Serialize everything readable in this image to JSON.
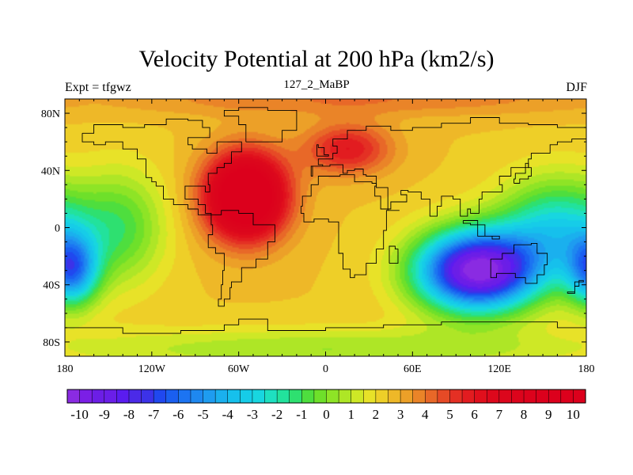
{
  "chart_data": {
    "type": "heatmap",
    "title": "Velocity Potential at 200 hPa (km2/s)",
    "left_label": "Expt = tfgwz",
    "center_label": "127_2_MaBP",
    "right_label": "DJF",
    "x_range": [
      -180,
      180
    ],
    "y_range": [
      -90,
      90
    ],
    "x_ticks": [
      {
        "value": -180,
        "label": "180"
      },
      {
        "value": -120,
        "label": "120W"
      },
      {
        "value": -60,
        "label": "60W"
      },
      {
        "value": 0,
        "label": "0"
      },
      {
        "value": 60,
        "label": "60E"
      },
      {
        "value": 120,
        "label": "120E"
      },
      {
        "value": 180,
        "label": "180"
      }
    ],
    "y_ticks": [
      {
        "value": 80,
        "label": "80N"
      },
      {
        "value": 40,
        "label": "40N"
      },
      {
        "value": 0,
        "label": "0"
      },
      {
        "value": -40,
        "label": "40S"
      },
      {
        "value": -80,
        "label": "80S"
      }
    ],
    "colorbar": {
      "min": -10.5,
      "max": 10.5,
      "step": 0.5,
      "labels": [
        "-10",
        "-9",
        "-8",
        "-7",
        "-6",
        "-5",
        "-4",
        "-3",
        "-2",
        "-1",
        "0",
        "1",
        "2",
        "3",
        "4",
        "5",
        "6",
        "7",
        "8",
        "9",
        "10"
      ],
      "colors": [
        "#8a2be2",
        "#7b1fe6",
        "#6c1ee6",
        "#6a1ee8",
        "#5a1cf0",
        "#4b2ae8",
        "#3c32e8",
        "#2048ef",
        "#1a5ff0",
        "#1c74f2",
        "#1e88f0",
        "#1e9cf0",
        "#1ab0ee",
        "#16c0ec",
        "#16cce8",
        "#18d6e0",
        "#1ee0c0",
        "#22e29c",
        "#2ee070",
        "#4ede3e",
        "#6ee02a",
        "#8ee426",
        "#aee626",
        "#cee826",
        "#e8e228",
        "#eecf28",
        "#eeb828",
        "#eca028",
        "#ea8428",
        "#e86828",
        "#e64a26",
        "#e43024",
        "#e21c20",
        "#e00f1c",
        "#dd081c",
        "#dc061c",
        "#dc041c",
        "#dc021c",
        "#dc001c",
        "#dc001c",
        "#dc001c",
        "#dc001c"
      ]
    },
    "field_blobs": [
      {
        "name": "background",
        "value": 2.5
      },
      {
        "name": "north-pole-band",
        "lon": 20,
        "lat": 90,
        "sx": 180,
        "sy": 12,
        "amp": 1.5
      },
      {
        "name": "na-atlantic-high",
        "lon": -55,
        "lat": 22,
        "sx": 28,
        "sy": 30,
        "amp": 9
      },
      {
        "name": "eurasia-plume",
        "lon": 15,
        "lat": 55,
        "sx": 30,
        "sy": 18,
        "amp": 3.5
      },
      {
        "name": "indian-ocean-low",
        "lon": 105,
        "lat": -30,
        "sx": 42,
        "sy": 28,
        "amp": -13
      },
      {
        "name": "west-pacific-low",
        "lon": 160,
        "lat": 0,
        "sx": 40,
        "sy": 35,
        "amp": -5
      },
      {
        "name": "east-pacific-low",
        "lon": -175,
        "lat": -30,
        "sx": 18,
        "sy": 25,
        "amp": -7
      },
      {
        "name": "mid-pacific-trough",
        "lon": -140,
        "lat": 0,
        "sx": 30,
        "sy": 40,
        "amp": -3
      },
      {
        "name": "south-ocean-band",
        "lon": 0,
        "lat": -85,
        "sx": 200,
        "sy": 15,
        "amp": -2
      }
    ],
    "coastlines": [
      {
        "name": "north-america",
        "points": [
          [
            -168,
            66
          ],
          [
            -160,
            72
          ],
          [
            -140,
            70
          ],
          [
            -125,
            72
          ],
          [
            -110,
            76
          ],
          [
            -95,
            75
          ],
          [
            -85,
            70
          ],
          [
            -80,
            63
          ],
          [
            -95,
            58
          ],
          [
            -92,
            55
          ],
          [
            -82,
            52
          ],
          [
            -75,
            60
          ],
          [
            -65,
            60
          ],
          [
            -58,
            53
          ],
          [
            -65,
            45
          ],
          [
            -70,
            42
          ],
          [
            -75,
            38
          ],
          [
            -81,
            30
          ],
          [
            -80,
            25
          ],
          [
            -83,
            29
          ],
          [
            -90,
            29
          ],
          [
            -97,
            26
          ],
          [
            -97,
            20
          ],
          [
            -88,
            16
          ],
          [
            -83,
            10
          ],
          [
            -79,
            9
          ],
          [
            -88,
            13
          ],
          [
            -95,
            16
          ],
          [
            -105,
            20
          ],
          [
            -112,
            29
          ],
          [
            -117,
            32
          ],
          [
            -120,
            35
          ],
          [
            -124,
            40
          ],
          [
            -124,
            48
          ],
          [
            -130,
            55
          ],
          [
            -140,
            60
          ],
          [
            -152,
            58
          ],
          [
            -160,
            60
          ],
          [
            -168,
            66
          ]
        ]
      },
      {
        "name": "greenland",
        "points": [
          [
            -55,
            60
          ],
          [
            -45,
            60
          ],
          [
            -30,
            68
          ],
          [
            -20,
            75
          ],
          [
            -20,
            82
          ],
          [
            -40,
            84
          ],
          [
            -60,
            82
          ],
          [
            -70,
            78
          ],
          [
            -60,
            72
          ],
          [
            -55,
            60
          ]
        ]
      },
      {
        "name": "south-america",
        "points": [
          [
            -79,
            9
          ],
          [
            -72,
            12
          ],
          [
            -60,
            10
          ],
          [
            -50,
            2
          ],
          [
            -35,
            -5
          ],
          [
            -35,
            -10
          ],
          [
            -40,
            -22
          ],
          [
            -48,
            -28
          ],
          [
            -58,
            -38
          ],
          [
            -65,
            -42
          ],
          [
            -66,
            -50
          ],
          [
            -70,
            -55
          ],
          [
            -74,
            -50
          ],
          [
            -72,
            -40
          ],
          [
            -71,
            -30
          ],
          [
            -70,
            -18
          ],
          [
            -76,
            -14
          ],
          [
            -81,
            -5
          ],
          [
            -78,
            2
          ],
          [
            -79,
            9
          ]
        ]
      },
      {
        "name": "africa",
        "points": [
          [
            -17,
            15
          ],
          [
            -16,
            22
          ],
          [
            -10,
            30
          ],
          [
            -5,
            36
          ],
          [
            10,
            37
          ],
          [
            20,
            32
          ],
          [
            32,
            31
          ],
          [
            35,
            28
          ],
          [
            43,
            12
          ],
          [
            51,
            12
          ],
          [
            42,
            -2
          ],
          [
            40,
            -15
          ],
          [
            35,
            -25
          ],
          [
            28,
            -33
          ],
          [
            20,
            -35
          ],
          [
            17,
            -29
          ],
          [
            12,
            -18
          ],
          [
            9,
            -5
          ],
          [
            9,
            4
          ],
          [
            2,
            6
          ],
          [
            -8,
            4
          ],
          [
            -15,
            10
          ],
          [
            -17,
            15
          ]
        ]
      },
      {
        "name": "europe-asia",
        "points": [
          [
            -10,
            36
          ],
          [
            -9,
            43
          ],
          [
            -2,
            44
          ],
          [
            -5,
            48
          ],
          [
            5,
            52
          ],
          [
            8,
            57
          ],
          [
            5,
            62
          ],
          [
            15,
            68
          ],
          [
            28,
            71
          ],
          [
            45,
            68
          ],
          [
            60,
            70
          ],
          [
            80,
            73
          ],
          [
            100,
            77
          ],
          [
            120,
            73
          ],
          [
            140,
            72
          ],
          [
            160,
            70
          ],
          [
            180,
            68
          ],
          [
            180,
            62
          ],
          [
            170,
            60
          ],
          [
            160,
            58
          ],
          [
            155,
            52
          ],
          [
            142,
            48
          ],
          [
            140,
            42
          ],
          [
            128,
            36
          ],
          [
            120,
            30
          ],
          [
            122,
            25
          ],
          [
            108,
            20
          ],
          [
            106,
            10
          ],
          [
            100,
            13
          ],
          [
            98,
            8
          ],
          [
            93,
            20
          ],
          [
            88,
            22
          ],
          [
            80,
            15
          ],
          [
            77,
            8
          ],
          [
            72,
            20
          ],
          [
            66,
            25
          ],
          [
            57,
            26
          ],
          [
            52,
            23
          ],
          [
            56,
            18
          ],
          [
            45,
            13
          ],
          [
            38,
            22
          ],
          [
            34,
            29
          ],
          [
            35,
            36
          ],
          [
            28,
            37
          ],
          [
            26,
            41
          ],
          [
            20,
            40
          ],
          [
            15,
            38
          ],
          [
            12,
            44
          ],
          [
            8,
            44
          ],
          [
            3,
            43
          ],
          [
            -10,
            36
          ]
        ]
      },
      {
        "name": "australia",
        "points": [
          [
            114,
            -22
          ],
          [
            122,
            -18
          ],
          [
            130,
            -12
          ],
          [
            136,
            -12
          ],
          [
            142,
            -11
          ],
          [
            146,
            -18
          ],
          [
            153,
            -26
          ],
          [
            151,
            -33
          ],
          [
            146,
            -39
          ],
          [
            138,
            -35
          ],
          [
            131,
            -32
          ],
          [
            118,
            -35
          ],
          [
            114,
            -34
          ],
          [
            114,
            -22
          ]
        ]
      },
      {
        "name": "antarctica",
        "points": [
          [
            -180,
            -70
          ],
          [
            -140,
            -74
          ],
          [
            -100,
            -72
          ],
          [
            -70,
            -68
          ],
          [
            -60,
            -64
          ],
          [
            -40,
            -72
          ],
          [
            0,
            -70
          ],
          [
            40,
            -68
          ],
          [
            80,
            -66
          ],
          [
            120,
            -66
          ],
          [
            160,
            -70
          ],
          [
            180,
            -72
          ]
        ]
      },
      {
        "name": "japan",
        "points": [
          [
            130,
            31
          ],
          [
            134,
            34
          ],
          [
            140,
            36
          ],
          [
            142,
            42
          ],
          [
            140,
            45
          ],
          [
            138,
            38
          ],
          [
            131,
            34
          ],
          [
            130,
            31
          ]
        ]
      },
      {
        "name": "uk",
        "points": [
          [
            -6,
            50
          ],
          [
            2,
            51
          ],
          [
            -1,
            56
          ],
          [
            -5,
            58
          ],
          [
            -6,
            50
          ]
        ]
      },
      {
        "name": "madagascar",
        "points": [
          [
            44,
            -25
          ],
          [
            48,
            -25
          ],
          [
            50,
            -15
          ],
          [
            48,
            -13
          ],
          [
            44,
            -17
          ],
          [
            44,
            -25
          ]
        ]
      },
      {
        "name": "indonesia",
        "points": [
          [
            95,
            5
          ],
          [
            105,
            -6
          ],
          [
            115,
            -8
          ],
          [
            120,
            -6
          ],
          [
            110,
            2
          ],
          [
            100,
            3
          ],
          [
            95,
            5
          ]
        ]
      },
      {
        "name": "new-zealand",
        "points": [
          [
            167,
            -46
          ],
          [
            172,
            -41
          ],
          [
            175,
            -37
          ],
          [
            178,
            -38
          ],
          [
            172,
            -45
          ],
          [
            167,
            -46
          ]
        ]
      }
    ]
  }
}
